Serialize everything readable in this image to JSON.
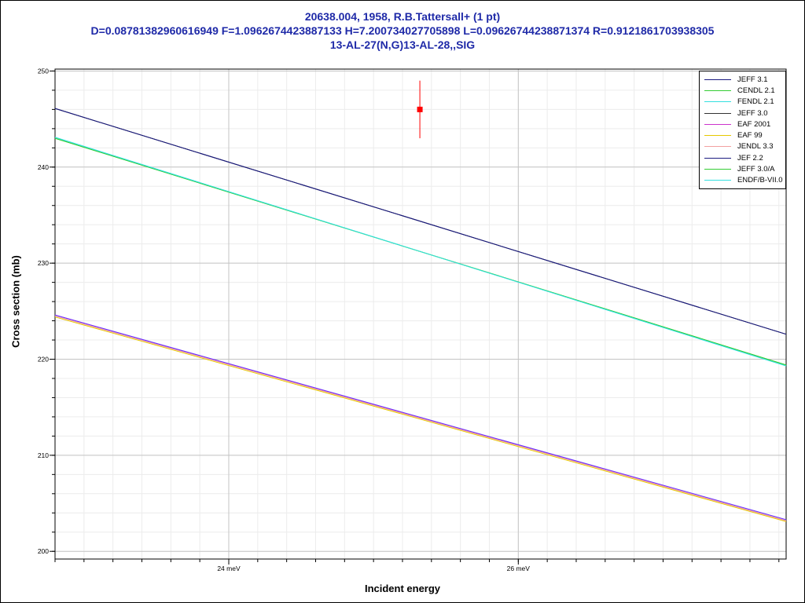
{
  "titles": {
    "line1": "20638.004, 1958, R.B.Tattersall+ (1 pt)",
    "line2": "D=0.08781382960616949 F=1.0962674423887133 H=7.200734027705898 L=0.09626744238871374 R=0.9121861703938305",
    "line3": "13-AL-27(N,G)13-AL-28,,SIG"
  },
  "chart_data": {
    "type": "line",
    "title": "20638.004, 1958, R.B.Tattersall+ (1 pt)",
    "xlabel": "Incident energy",
    "ylabel": "Cross section (mb)",
    "xlim": [
      22.8,
      27.85
    ],
    "ylim": [
      199.2,
      250.2
    ],
    "x_unit": "meV",
    "y_unit": "mb",
    "x_ticks": [
      24,
      26
    ],
    "x_tick_labels": [
      "24 meV",
      "26 meV"
    ],
    "y_ticks": [
      200,
      210,
      220,
      230,
      240,
      250
    ],
    "y_tick_labels": [
      "200",
      "210",
      "220",
      "230",
      "240",
      "250"
    ],
    "grid": true,
    "legend_position": "top-right",
    "series": [
      {
        "name": "JEFF 3.1",
        "color": "#1a1a80",
        "x": [
          22.8,
          27.85
        ],
        "y": [
          246.1,
          222.6
        ]
      },
      {
        "name": "CENDL 2.1",
        "color": "#33cc33",
        "x": [
          22.8,
          27.85
        ],
        "y": [
          243.0,
          219.4
        ]
      },
      {
        "name": "FENDL 2.1",
        "color": "#33e0e0",
        "x": [
          22.8,
          27.85
        ],
        "y": [
          243.1,
          219.3
        ]
      },
      {
        "name": "JEFF 3.0",
        "color": "#333333",
        "x": [
          22.8,
          27.85
        ],
        "y": [
          246.1,
          222.6
        ]
      },
      {
        "name": "EAF 2001",
        "color": "#cc33cc",
        "x": [
          22.8,
          27.85
        ],
        "y": [
          224.6,
          203.2
        ]
      },
      {
        "name": "EAF 99",
        "color": "#e6c800",
        "x": [
          22.8,
          27.85
        ],
        "y": [
          224.4,
          203.1
        ]
      },
      {
        "name": "JENDL 3.3",
        "color": "#f2a0a0",
        "x": [
          22.8,
          27.85
        ],
        "y": [
          224.5,
          203.2
        ]
      },
      {
        "name": "JEF 2.2",
        "color": "#1a1a80",
        "x": [
          22.8,
          27.85
        ],
        "y": [
          246.1,
          222.6
        ]
      },
      {
        "name": "JEFF 3.0/A",
        "color": "#33cc33",
        "x": [
          22.8,
          27.85
        ],
        "y": [
          243.0,
          219.4
        ]
      },
      {
        "name": "ENDF/B-VII.0",
        "color": "#33e0e0",
        "x": [
          22.8,
          27.85
        ],
        "y": [
          243.1,
          219.3
        ]
      },
      {
        "name": "",
        "color": "#6633ff",
        "x": [
          22.8,
          27.85
        ],
        "y": [
          224.6,
          203.3
        ]
      }
    ],
    "experimental_points": [
      {
        "x": 25.32,
        "y": 246.0,
        "yerr": 3.0,
        "color": "#ff0000"
      }
    ]
  }
}
